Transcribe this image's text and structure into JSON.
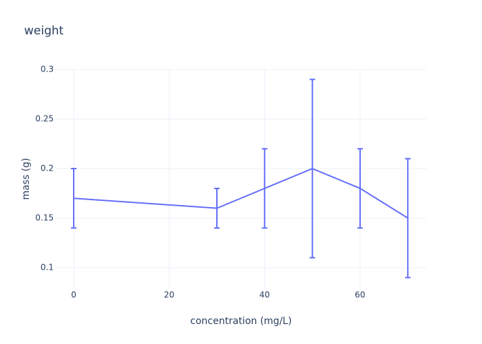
{
  "chart_data": {
    "type": "line",
    "title": "weight",
    "x_label": "concentration (mg/L)",
    "y_label": "mass (g)",
    "x": [
      0,
      30,
      40,
      50,
      60,
      70
    ],
    "values": [
      0.17,
      0.16,
      0.18,
      0.2,
      0.18,
      0.15
    ],
    "errors": [
      0.03,
      0.02,
      0.04,
      0.09,
      0.04,
      0.06
    ],
    "color": "#636efa",
    "xlim": [
      -3.9,
      74
    ],
    "xticks": [
      0,
      20,
      40,
      60
    ],
    "ylim": [
      0.0785,
      0.3007
    ],
    "yticks": [
      0.1,
      0.15,
      0.2,
      0.25,
      0.3
    ],
    "grid": true
  }
}
